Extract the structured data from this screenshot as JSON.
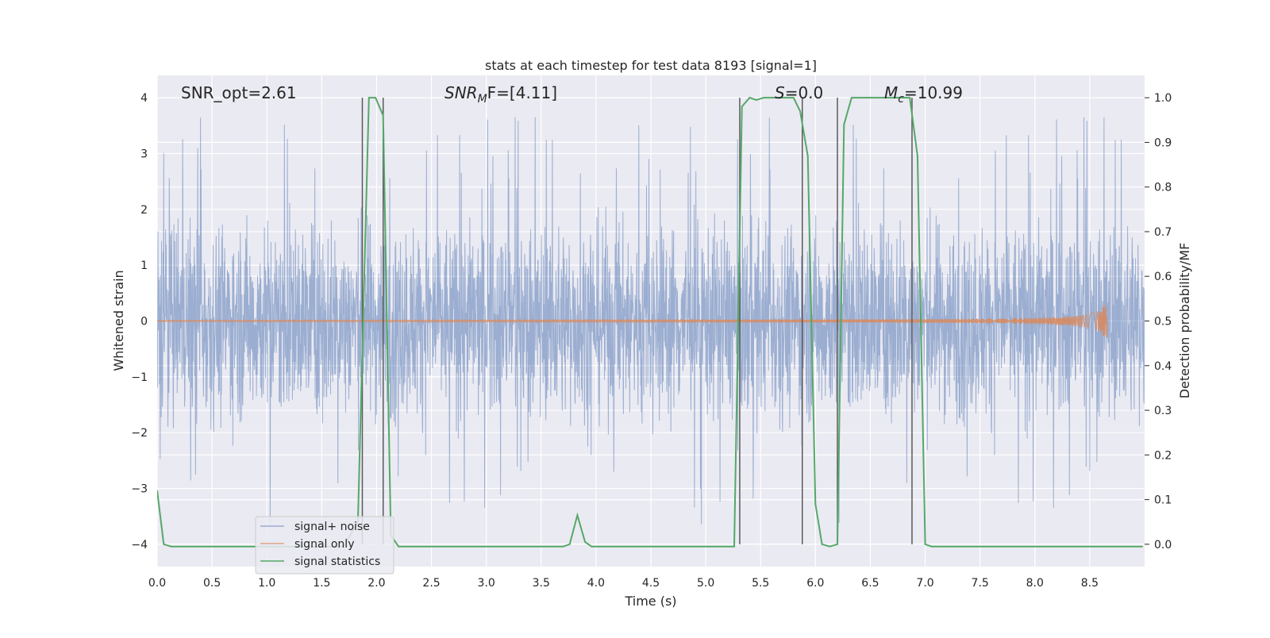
{
  "chart_data": {
    "type": "line",
    "title": "stats at each timestep for test data 8193 [signal=1]",
    "xlabel": "Time (s)",
    "ylabel_left": "Whitened strain",
    "ylabel_right": "Detection probability/MF",
    "xlim": [
      0.0,
      9.0
    ],
    "ylim_left": [
      -4.4,
      4.4
    ],
    "ylim_right": [
      -0.05,
      1.05
    ],
    "x_ticks": [
      0.0,
      0.5,
      1.0,
      1.5,
      2.0,
      2.5,
      3.0,
      3.5,
      4.0,
      4.5,
      5.0,
      5.5,
      6.0,
      6.5,
      7.0,
      7.5,
      8.0,
      8.5
    ],
    "x_tick_labels": [
      "0.0",
      "0.5",
      "1.0",
      "1.5",
      "2.0",
      "2.5",
      "3.0",
      "3.5",
      "4.0",
      "4.5",
      "5.0",
      "5.5",
      "6.0",
      "6.5",
      "7.0",
      "7.5",
      "8.0",
      "8.5"
    ],
    "y_left_ticks": [
      -4,
      -3,
      -2,
      -1,
      0,
      1,
      2,
      3,
      4
    ],
    "y_left_tick_labels": [
      "−4",
      "−3",
      "−2",
      "−1",
      "0",
      "1",
      "2",
      "3",
      "4"
    ],
    "y_right_ticks": [
      0.0,
      0.1,
      0.2,
      0.3,
      0.4,
      0.5,
      0.6,
      0.7,
      0.8,
      0.9,
      1.0
    ],
    "y_right_tick_labels": [
      "0.0",
      "0.1",
      "0.2",
      "0.3",
      "0.4",
      "0.5",
      "0.6",
      "0.7",
      "0.8",
      "0.9",
      "1.0"
    ],
    "grid": true,
    "legend_position": "lower-left",
    "annotations": [
      {
        "text": "SNR_opt=2.61",
        "x": 0.2,
        "y": 4.1
      },
      {
        "text_base": "SNR",
        "text_sub": "M",
        "text_rest": "F=[4.11]",
        "x": 2.6,
        "y": 4.1
      },
      {
        "text_base": "S",
        "text_rest": "=0.0",
        "x": 5.6,
        "y": 4.1
      },
      {
        "text_base": "M",
        "text_sub": "c",
        "text_rest": "=10.99",
        "x": 6.6,
        "y": 4.1
      }
    ],
    "vertical_lines": [
      1.87,
      2.06,
      5.31,
      5.88,
      6.2,
      6.88
    ],
    "vertical_lines_range": [
      -4.0,
      4.0
    ],
    "series": [
      {
        "name": "signal+ noise",
        "axis": "left",
        "color": "#4c72b0",
        "kind": "noise",
        "x_range": [
          0.0,
          9.0
        ],
        "typical_amplitude": 1.6,
        "peak_amplitude": 3.7
      },
      {
        "name": "signal only",
        "axis": "left",
        "color": "#dd8452",
        "kind": "chirp",
        "x_range": [
          0.0,
          8.66
        ],
        "peak_time": 8.66,
        "peak_amplitude": 0.5
      },
      {
        "name": "signal statistics",
        "axis": "right",
        "color": "#55a868",
        "x": [
          0.0,
          0.06,
          0.13,
          1.7,
          1.83,
          1.93,
          1.99,
          2.06,
          2.13,
          2.2,
          3.7,
          3.76,
          3.83,
          3.9,
          3.96,
          5.26,
          5.33,
          5.4,
          5.46,
          5.53,
          5.8,
          5.86,
          5.93,
          6.0,
          6.06,
          6.13,
          6.2,
          6.26,
          6.33,
          6.86,
          6.93,
          7.0,
          7.06,
          8.98
        ],
        "values": [
          0.12,
          0.0,
          -0.005,
          -0.005,
          0.05,
          1.0,
          1.0,
          0.96,
          0.02,
          -0.005,
          -0.005,
          0.0,
          0.065,
          0.005,
          -0.005,
          -0.005,
          0.98,
          1.0,
          0.995,
          1.0,
          1.0,
          0.97,
          0.87,
          0.09,
          0.0,
          -0.005,
          0.0,
          0.94,
          1.0,
          1.0,
          0.87,
          0.0,
          -0.005,
          -0.005
        ]
      }
    ]
  }
}
